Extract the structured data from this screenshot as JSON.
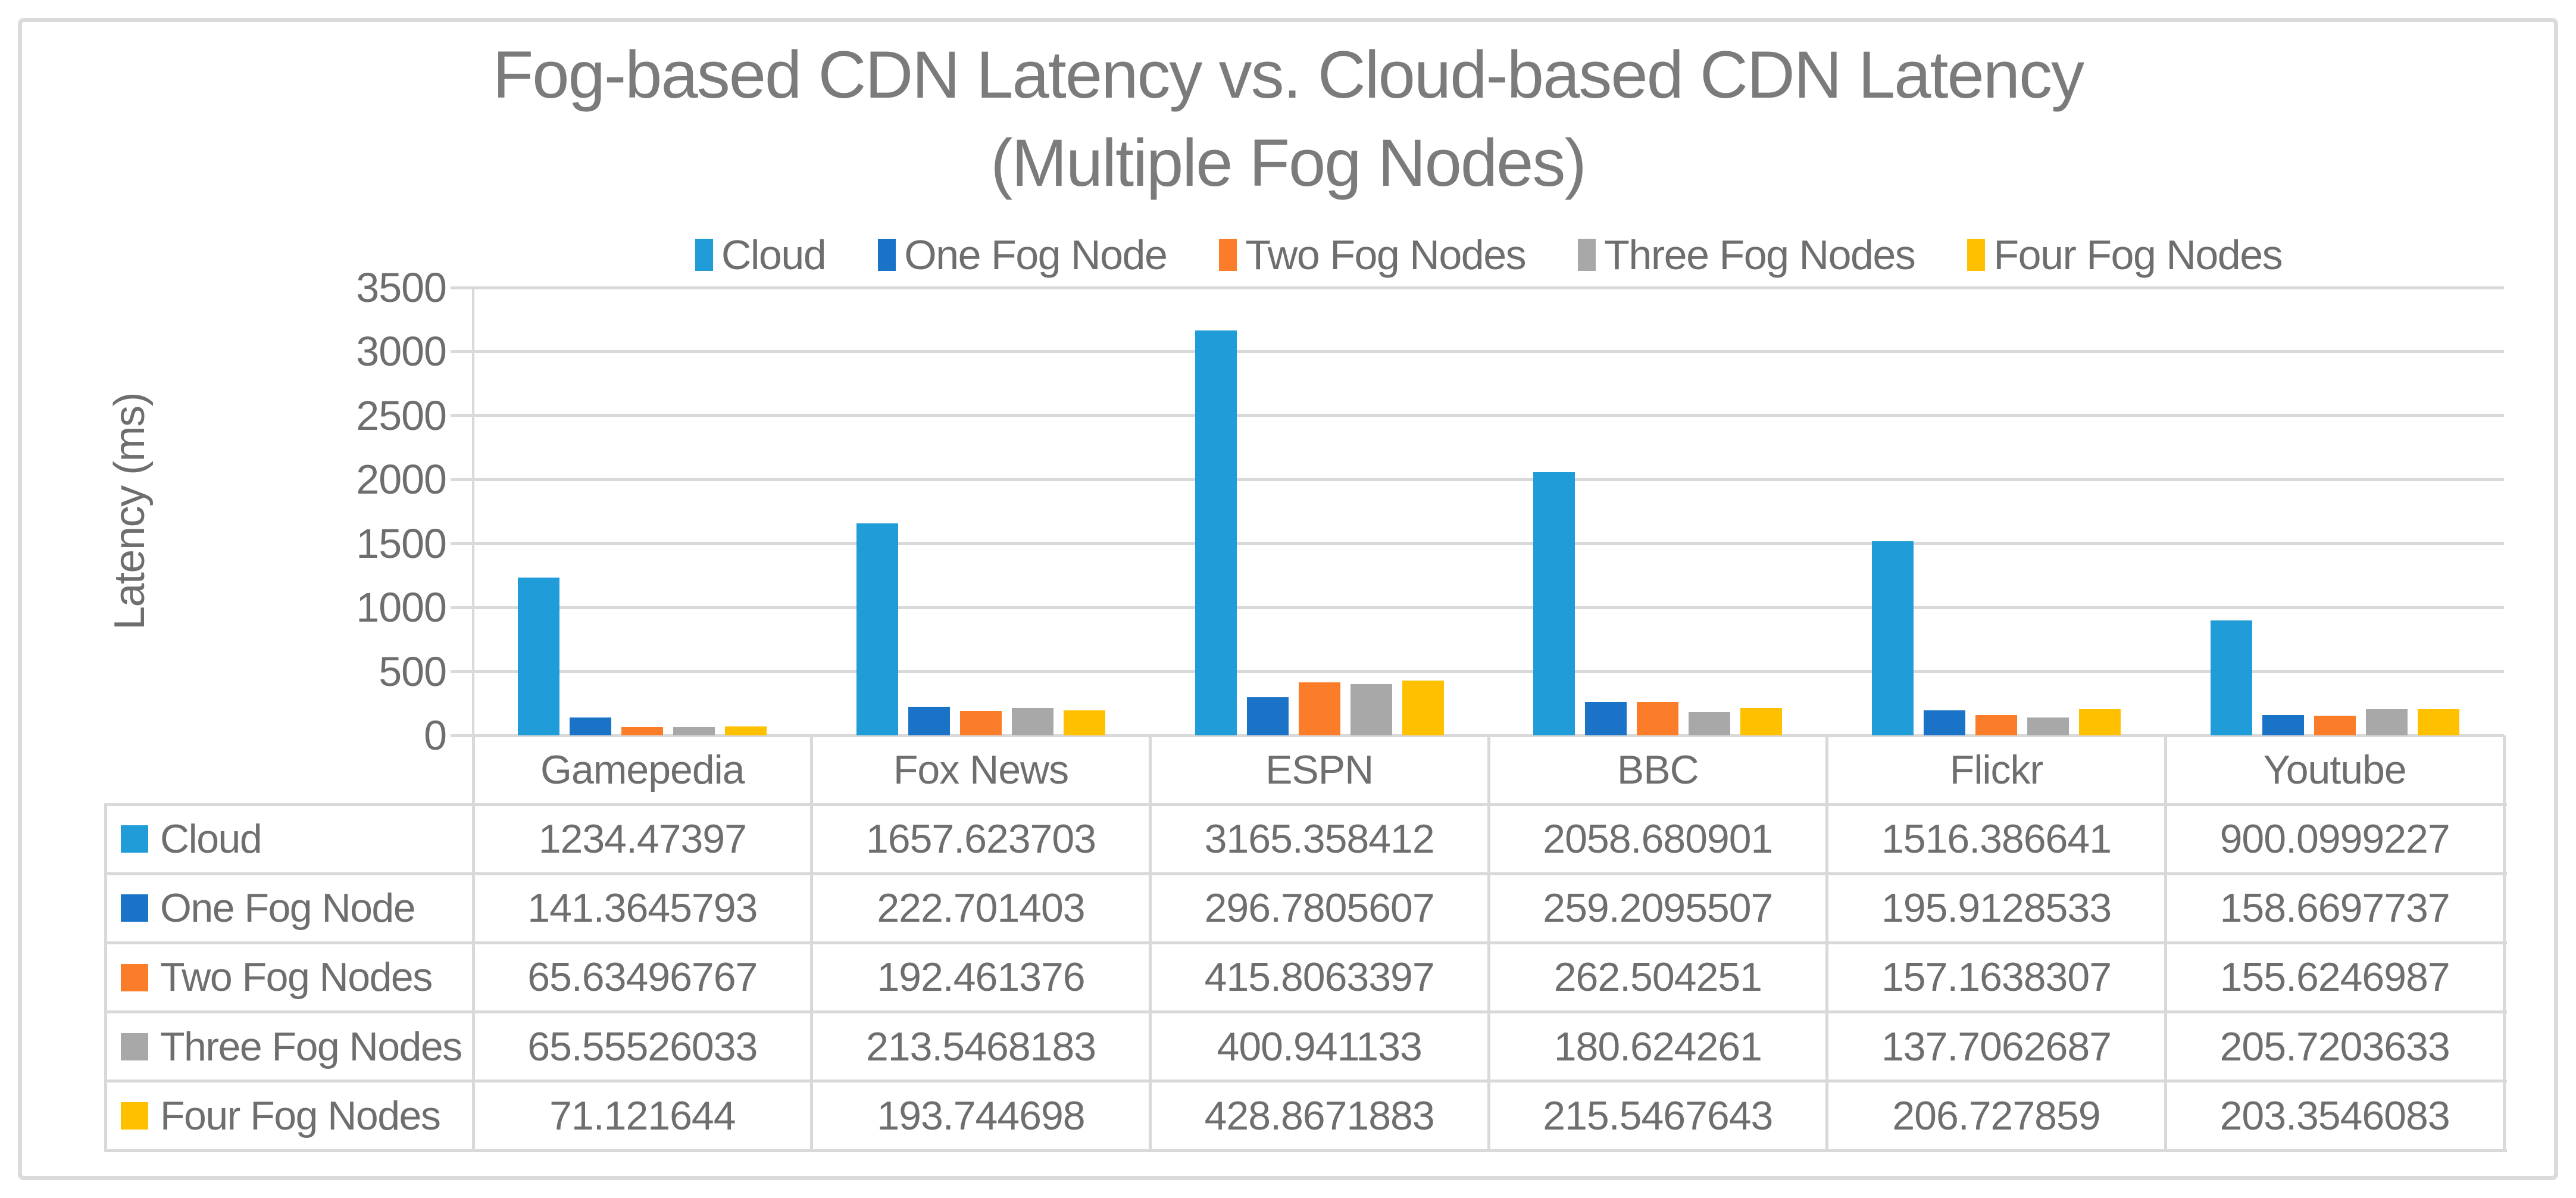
{
  "chart": {
    "title_line1": "Fog-based CDN Latency vs. Cloud-based CDN Latency",
    "title_line2": "(Multiple Fog Nodes)",
    "y_axis_title": "Latency (ms)"
  },
  "chart_data": {
    "type": "bar",
    "title": "Fog-based CDN Latency vs. Cloud-based CDN Latency (Multiple Fog Nodes)",
    "xlabel": "",
    "ylabel": "Latency (ms)",
    "ylim": [
      0,
      3500
    ],
    "ytick_step": 500,
    "yticks": [
      0,
      500,
      1000,
      1500,
      2000,
      2500,
      3000,
      3500
    ],
    "grid": "horizontal",
    "legend_position": "top-center",
    "show_data_table": true,
    "categories": [
      "Gamepedia",
      "Fox News",
      "ESPN",
      "BBC",
      "Flickr",
      "Youtube"
    ],
    "series": [
      {
        "name": "Cloud",
        "color": "#209DD8",
        "values": [
          1234.47397,
          1657.623703,
          3165.358412,
          2058.680901,
          1516.386641,
          900.0999227
        ]
      },
      {
        "name": "One Fog Node",
        "color": "#1B73C8",
        "values": [
          141.3645793,
          222.701403,
          296.7805607,
          259.2095507,
          195.9128533,
          158.6697737
        ]
      },
      {
        "name": "Two Fog Nodes",
        "color": "#FB7D29",
        "values": [
          65.63496767,
          192.461376,
          415.8063397,
          262.504251,
          157.1638307,
          155.6246987
        ]
      },
      {
        "name": "Three Fog Nodes",
        "color": "#A8A8A8",
        "values": [
          65.55526033,
          213.5468183,
          400.941133,
          180.624261,
          137.7062687,
          205.7203633
        ]
      },
      {
        "name": "Four Fog Nodes",
        "color": "#FFC000",
        "values": [
          71.121644,
          193.744698,
          428.8671883,
          215.5467643,
          206.727859,
          203.3546083
        ]
      }
    ]
  },
  "colors": {
    "grid": "#D9D9D9",
    "card_border": "#DBDBDB",
    "title_text": "#7B7B7B",
    "axis_text": "#6E6E6E",
    "table_text": "#6E6E6E"
  }
}
